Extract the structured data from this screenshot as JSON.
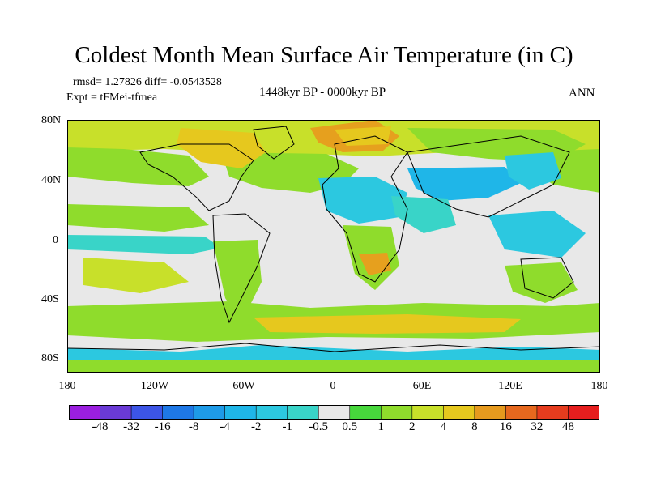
{
  "title": "Coldest Month Mean Surface Air Temperature (in C)",
  "stats": {
    "line1": "rmsd= 1.27826 diff= -0.0543528",
    "line2": "Expt = tFMei-tfmea"
  },
  "period": "1448kyr BP - 0000kyr BP",
  "season": "ANN",
  "lat_labels": [
    "80N",
    "40N",
    "0",
    "40S",
    "80S"
  ],
  "lon_labels": [
    "180",
    "120W",
    "60W",
    "0",
    "60E",
    "120E",
    "180"
  ],
  "colorbar": {
    "labels": [
      "-48",
      "-32",
      "-16",
      "-8",
      "-4",
      "-2",
      "-1",
      "-0.5",
      "0.5",
      "1",
      "2",
      "4",
      "8",
      "16",
      "32",
      "48"
    ],
    "colors": [
      "#9b1fe0",
      "#6a3ad6",
      "#3c55e6",
      "#1e78e6",
      "#1e9be8",
      "#1fb6e8",
      "#2cc8e0",
      "#39d4c8",
      "#e8e8e8",
      "#47d73c",
      "#8fdc2c",
      "#c8e02a",
      "#e6c81e",
      "#e69a1e",
      "#e6681e",
      "#e63c1e",
      "#e61e1e"
    ]
  },
  "map_colors": {
    "neutral": "#e8e8e8",
    "green": "#8fdc2c",
    "lightgreen": "#c8e02a",
    "yellow": "#e6c81e",
    "orange": "#e6a01e",
    "teal": "#39d4c8",
    "cyan": "#2cc8e0",
    "blue": "#1fb6e8"
  }
}
